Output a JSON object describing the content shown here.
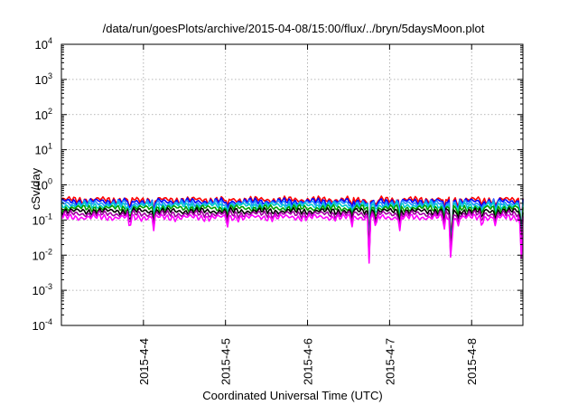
{
  "chart_data": {
    "type": "line",
    "title": "/data/run/goesPlots/archive/2015-04-08/15:00/flux/../bryn/5daysMoon.plot",
    "xlabel": "Coordinated Universal Time (UTC)",
    "ylabel": "cSv/day",
    "yscale": "log",
    "ylim": [
      0.0001,
      10000
    ],
    "xlim": [
      "2015-04-03 00:00",
      "2015-04-08 15:00"
    ],
    "grid": true,
    "legend": "none",
    "y_ticks": [
      {
        "value": 0.0001,
        "base": "10",
        "exp": "-4"
      },
      {
        "value": 0.001,
        "base": "10",
        "exp": "-3"
      },
      {
        "value": 0.01,
        "base": "10",
        "exp": "-2"
      },
      {
        "value": 0.1,
        "base": "10",
        "exp": "-1"
      },
      {
        "value": 1,
        "base": "10",
        "exp": "0"
      },
      {
        "value": 10,
        "base": "10",
        "exp": "1"
      },
      {
        "value": 100,
        "base": "10",
        "exp": "2"
      },
      {
        "value": 1000,
        "base": "10",
        "exp": "3"
      },
      {
        "value": 10000,
        "base": "10",
        "exp": "4"
      }
    ],
    "x_ticks": [
      "2015-4-4",
      "2015-4-5",
      "2015-4-6",
      "2015-4-7",
      "2015-4-8"
    ],
    "x_tick_values": [
      "2015-04-04",
      "2015-04-05",
      "2015-04-06",
      "2015-04-07",
      "2015-04-08"
    ],
    "series": [
      {
        "color": "#ff0000",
        "level": 0.38
      },
      {
        "color": "#0000ff",
        "level": 0.34
      },
      {
        "color": "#1e90ff",
        "level": 0.3
      },
      {
        "color": "#00cccc",
        "level": 0.26
      },
      {
        "color": "#00a000",
        "level": 0.22
      },
      {
        "color": "#000000",
        "level": 0.18
      },
      {
        "color": "#a000a0",
        "level": 0.15
      },
      {
        "color": "#ff00ff",
        "level": 0.12
      }
    ],
    "dips": [
      {
        "x": "2015-04-03 20:00",
        "min": 0.045
      },
      {
        "x": "2015-04-04 03:00",
        "min": 0.05
      },
      {
        "x": "2015-04-05 00:30",
        "min": 0.055
      },
      {
        "x": "2015-04-06 13:00",
        "min": 0.06
      },
      {
        "x": "2015-04-06 18:00",
        "min": 0.006
      },
      {
        "x": "2015-04-06 20:00",
        "min": 0.05
      },
      {
        "x": "2015-04-07 03:00",
        "min": 0.05
      },
      {
        "x": "2015-04-07 16:00",
        "min": 0.05
      },
      {
        "x": "2015-04-07 18:00",
        "min": 0.0025
      },
      {
        "x": "2015-04-07 20:00",
        "min": 0.06
      },
      {
        "x": "2015-04-08 03:00",
        "min": 0.06
      },
      {
        "x": "2015-04-08 07:00",
        "min": 0.06
      },
      {
        "x": "2015-04-08 14:30",
        "min": 0.006
      }
    ]
  }
}
